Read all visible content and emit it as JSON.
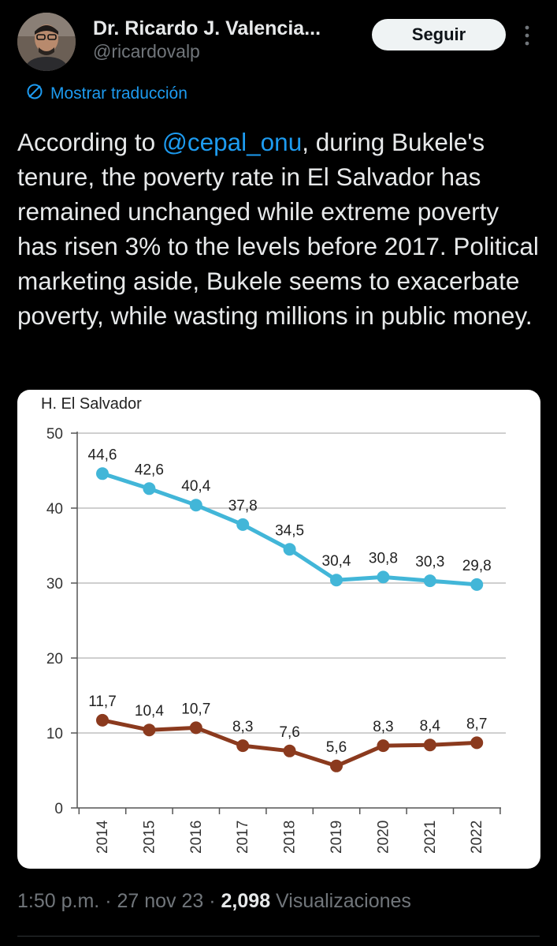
{
  "author": {
    "name": "Dr. Ricardo J. Valencia...",
    "handle": "@ricardovalp"
  },
  "follow_label": "Seguir",
  "translate_label": "Mostrar traducción",
  "tweet": {
    "before": "According to ",
    "mention": "@cepal_onu",
    "after": ", during Bukele's tenure, the poverty rate in El Salvador has remained unchanged while extreme poverty has risen 3% to the levels before 2017. Political marketing aside, Bukele seems to exacerbate poverty, while wasting millions in public money."
  },
  "meta": {
    "time": "1:50 p.m.",
    "sep": "·",
    "date": "27 nov 23",
    "views_count": "2,098",
    "views_label": "Visualizaciones"
  },
  "chart_data": {
    "type": "line",
    "title": "H. El Salvador",
    "categories": [
      "2014",
      "2015",
      "2016",
      "2017",
      "2018",
      "2019",
      "2020",
      "2021",
      "2022"
    ],
    "ylim": [
      0,
      50
    ],
    "yticks": [
      "0",
      "10",
      "20",
      "30",
      "40",
      "50"
    ],
    "grid": true,
    "series": [
      {
        "color": "#42b6d8",
        "values": [
          44.6,
          42.6,
          40.4,
          37.8,
          34.5,
          30.4,
          30.8,
          30.3,
          29.8
        ],
        "labels": [
          "44,6",
          "42,6",
          "40,4",
          "37,8",
          "34,5",
          "30,4",
          "30,8",
          "30,3",
          "29,8"
        ]
      },
      {
        "color": "#8b3a1e",
        "values": [
          11.7,
          10.4,
          10.7,
          8.3,
          7.6,
          5.6,
          8.3,
          8.4,
          8.7
        ],
        "labels": [
          "11,7",
          "10,4",
          "10,7",
          "8,3",
          "7,6",
          "5,6",
          "8,3",
          "8,4",
          "8,7"
        ]
      }
    ]
  },
  "colors": {
    "background": "#000000",
    "accent": "#1d9bf0",
    "text": "#e7e9ea",
    "muted": "#71767b"
  },
  "icons": {
    "more": "more-vertical-icon",
    "translate": "translate-icon",
    "avatar": "avatar"
  }
}
